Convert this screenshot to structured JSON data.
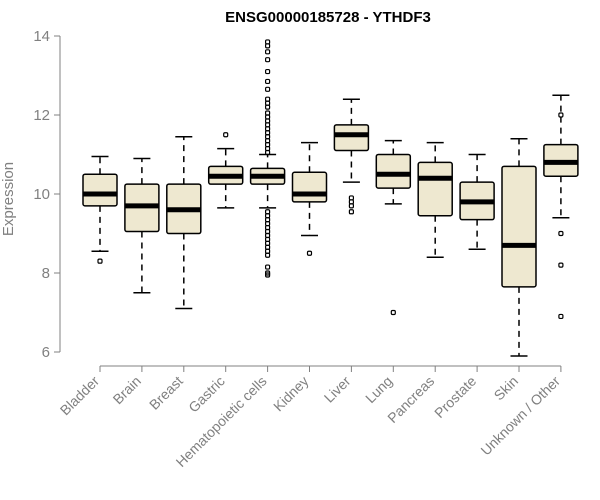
{
  "chart_data": {
    "type": "boxplot",
    "title": "ENSG00000185728 - YTHDF3",
    "ylabel": "Expression",
    "xlabel": "",
    "ylim": [
      5.8,
      14.2
    ],
    "yticks": [
      6,
      8,
      10,
      12,
      14
    ],
    "box_color": "#EEE8D0",
    "categories": [
      "Bladder",
      "Brain",
      "Breast",
      "Gastric",
      "Hematopoietic cells",
      "Kidney",
      "Liver",
      "Lung",
      "Pancreas",
      "Prostate",
      "Skin",
      "Unknown / Other"
    ],
    "boxes": [
      {
        "whisker_low": 8.55,
        "q1": 9.7,
        "median": 10.0,
        "q3": 10.5,
        "whisker_high": 10.95,
        "outliers": [
          8.3
        ]
      },
      {
        "whisker_low": 7.5,
        "q1": 9.05,
        "median": 9.7,
        "q3": 10.25,
        "whisker_high": 10.9,
        "outliers": []
      },
      {
        "whisker_low": 7.1,
        "q1": 9.0,
        "median": 9.6,
        "q3": 10.25,
        "whisker_high": 11.45,
        "outliers": []
      },
      {
        "whisker_low": 9.65,
        "q1": 10.25,
        "median": 10.45,
        "q3": 10.7,
        "whisker_high": 11.15,
        "outliers": [
          11.5
        ]
      },
      {
        "whisker_low": 9.65,
        "q1": 10.25,
        "median": 10.45,
        "q3": 10.65,
        "whisker_high": 11.0,
        "outliers": [
          13.85,
          13.75,
          13.6,
          13.4,
          13.1,
          12.85,
          12.65,
          12.4,
          12.3,
          12.2,
          12.05,
          11.95,
          11.85,
          11.75,
          11.65,
          11.55,
          11.45,
          11.35,
          11.25,
          11.15,
          11.05,
          9.55,
          9.45,
          9.35,
          9.25,
          9.15,
          9.05,
          8.95,
          8.85,
          8.75,
          8.65,
          8.55,
          8.45,
          8.15,
          8.0,
          7.95
        ]
      },
      {
        "whisker_low": 8.95,
        "q1": 9.8,
        "median": 10.0,
        "q3": 10.55,
        "whisker_high": 11.3,
        "outliers": [
          8.5
        ]
      },
      {
        "whisker_low": 10.3,
        "q1": 11.1,
        "median": 11.5,
        "q3": 11.75,
        "whisker_high": 12.4,
        "outliers": [
          9.9,
          9.8,
          9.7,
          9.55
        ]
      },
      {
        "whisker_low": 9.75,
        "q1": 10.15,
        "median": 10.5,
        "q3": 11.0,
        "whisker_high": 11.35,
        "outliers": [
          7.0
        ]
      },
      {
        "whisker_low": 8.4,
        "q1": 9.45,
        "median": 10.4,
        "q3": 10.8,
        "whisker_high": 11.3,
        "outliers": []
      },
      {
        "whisker_low": 8.6,
        "q1": 9.35,
        "median": 9.8,
        "q3": 10.3,
        "whisker_high": 11.0,
        "outliers": []
      },
      {
        "whisker_low": 5.9,
        "q1": 7.65,
        "median": 8.7,
        "q3": 10.7,
        "whisker_high": 11.4,
        "outliers": []
      },
      {
        "whisker_low": 9.4,
        "q1": 10.45,
        "median": 10.8,
        "q3": 11.25,
        "whisker_high": 12.5,
        "outliers": [
          12.0,
          9.0,
          8.2,
          6.9
        ]
      }
    ]
  }
}
